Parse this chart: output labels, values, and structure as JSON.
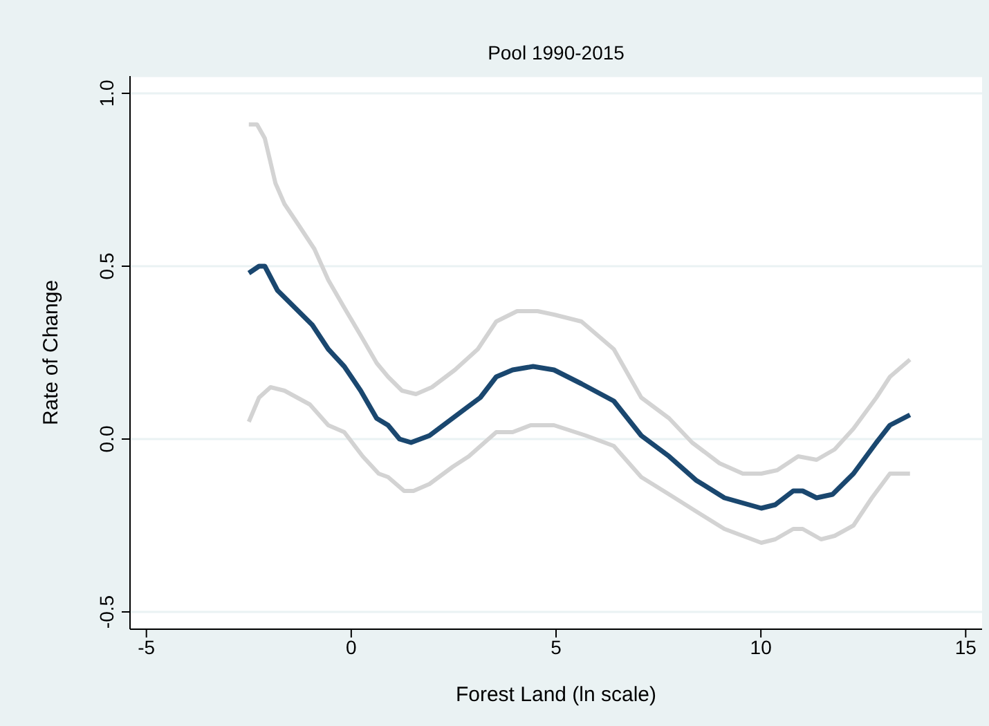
{
  "chart_data": {
    "type": "line",
    "title": "Pool 1990-2015",
    "xlabel": "Forest Land (ln scale)",
    "ylabel": "Rate of Change",
    "xlim": [
      -5.4,
      15.4
    ],
    "xticks": [
      -5,
      0,
      5,
      10,
      15
    ],
    "ylim": [
      -0.55,
      1.05
    ],
    "yticks": [
      -0.5,
      {
        "value": 0,
        "label": "0.0"
      },
      0.5,
      {
        "value": 1,
        "label": "1.0"
      }
    ],
    "grid": "y",
    "series": [
      {
        "color": "#d3d3d3",
        "x": [
          -2.5,
          -2.3,
          -2.11,
          -1.85,
          -1.63,
          -1.29,
          -0.9,
          -0.56,
          -0.17,
          0.23,
          0.62,
          0.9,
          1.24,
          1.58,
          1.97,
          2.53,
          3.09,
          3.54,
          4.05,
          4.55,
          4.95,
          5.62,
          6.41,
          7.08,
          7.76,
          8.32,
          8.99,
          9.56,
          10.01,
          10.4,
          10.91,
          11.36,
          11.8,
          12.26,
          12.82,
          13.15,
          13.64
        ],
        "values": [
          0.91,
          0.91,
          0.87,
          0.74,
          0.68,
          0.62,
          0.55,
          0.46,
          0.38,
          0.3,
          0.22,
          0.18,
          0.14,
          0.13,
          0.15,
          0.2,
          0.26,
          0.34,
          0.37,
          0.37,
          0.36,
          0.34,
          0.26,
          0.12,
          0.06,
          -0.01,
          -0.07,
          -0.1,
          -0.1,
          -0.09,
          -0.05,
          -0.06,
          -0.03,
          0.03,
          0.12,
          0.18,
          0.23
        ]
      },
      {
        "color": "#d3d3d3",
        "x": [
          -2.5,
          -2.25,
          -1.97,
          -1.63,
          -1.01,
          -0.56,
          -0.17,
          0.28,
          0.67,
          0.9,
          1.29,
          1.52,
          1.91,
          2.48,
          2.87,
          3.54,
          3.94,
          4.38,
          4.95,
          5.73,
          6.41,
          7.08,
          7.76,
          8.43,
          9.11,
          10.01,
          10.35,
          10.79,
          11.02,
          11.47,
          11.8,
          12.26,
          12.71,
          13.15,
          13.64
        ],
        "values": [
          0.05,
          0.12,
          0.15,
          0.14,
          0.1,
          0.04,
          0.02,
          -0.05,
          -0.1,
          -0.11,
          -0.15,
          -0.15,
          -0.13,
          -0.08,
          -0.05,
          0.02,
          0.02,
          0.04,
          0.04,
          0.01,
          -0.02,
          -0.11,
          -0.16,
          -0.21,
          -0.26,
          -0.3,
          -0.29,
          -0.26,
          -0.26,
          -0.29,
          -0.28,
          -0.25,
          -0.17,
          -0.1,
          -0.1
        ]
      },
      {
        "color": "#1a476f",
        "x": [
          -2.5,
          -2.25,
          -2.11,
          -1.8,
          -1.46,
          -0.95,
          -0.56,
          -0.17,
          0.23,
          0.62,
          0.9,
          1.18,
          1.46,
          1.91,
          2.36,
          2.81,
          3.15,
          3.54,
          3.94,
          4.44,
          4.95,
          5.62,
          6.41,
          7.08,
          7.76,
          8.43,
          9.11,
          10.01,
          10.35,
          10.79,
          11.02,
          11.36,
          11.75,
          12.26,
          12.82,
          13.15,
          13.64
        ],
        "values": [
          0.48,
          0.5,
          0.5,
          0.43,
          0.39,
          0.33,
          0.26,
          0.21,
          0.14,
          0.06,
          0.04,
          0.0,
          -0.01,
          0.01,
          0.05,
          0.09,
          0.12,
          0.18,
          0.2,
          0.21,
          0.2,
          0.16,
          0.11,
          0.01,
          -0.05,
          -0.12,
          -0.17,
          -0.2,
          -0.19,
          -0.15,
          -0.15,
          -0.17,
          -0.16,
          -0.1,
          -0.01,
          0.04,
          0.07
        ]
      }
    ]
  }
}
